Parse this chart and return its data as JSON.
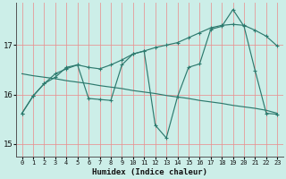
{
  "xlabel": "Humidex (Indice chaleur)",
  "bg_color": "#cceee8",
  "grid_color": "#e89090",
  "line_color": "#2d7a6e",
  "xlim": [
    -0.5,
    23.5
  ],
  "ylim": [
    14.75,
    17.85
  ],
  "yticks": [
    15,
    16,
    17
  ],
  "xticks": [
    0,
    1,
    2,
    3,
    4,
    5,
    6,
    7,
    8,
    9,
    10,
    11,
    12,
    13,
    14,
    15,
    16,
    17,
    18,
    19,
    20,
    21,
    22,
    23
  ],
  "line1_x": [
    0,
    1,
    2,
    3,
    4,
    5,
    6,
    7,
    8,
    9,
    10,
    11,
    12,
    13,
    14,
    15,
    16,
    17,
    18,
    19,
    20,
    21,
    22,
    23
  ],
  "line1_y": [
    15.62,
    15.97,
    16.22,
    16.42,
    16.52,
    16.6,
    15.92,
    15.9,
    15.88,
    16.6,
    16.82,
    16.88,
    15.38,
    15.12,
    15.95,
    16.55,
    16.62,
    17.32,
    17.38,
    17.72,
    17.38,
    16.48,
    15.62,
    15.6
  ],
  "line2_x": [
    0,
    1,
    2,
    3,
    4,
    5,
    6,
    7,
    8,
    9,
    10,
    11,
    12,
    13,
    14,
    15,
    16,
    17,
    18,
    19,
    20,
    21,
    22,
    23
  ],
  "line2_y": [
    15.62,
    15.97,
    16.22,
    16.35,
    16.55,
    16.6,
    16.55,
    16.52,
    16.6,
    16.7,
    16.82,
    16.88,
    16.95,
    17.0,
    17.05,
    17.15,
    17.25,
    17.35,
    17.4,
    17.42,
    17.4,
    17.3,
    17.18,
    16.98
  ],
  "line3_x": [
    0,
    1,
    2,
    3,
    4,
    5,
    6,
    7,
    8,
    9,
    10,
    11,
    12,
    13,
    14,
    15,
    16,
    17,
    18,
    19,
    20,
    21,
    22,
    23
  ],
  "line3_y": [
    16.42,
    16.38,
    16.35,
    16.32,
    16.28,
    16.25,
    16.22,
    16.18,
    16.15,
    16.12,
    16.08,
    16.05,
    16.02,
    15.98,
    15.95,
    15.92,
    15.88,
    15.85,
    15.82,
    15.78,
    15.75,
    15.72,
    15.68,
    15.62
  ]
}
